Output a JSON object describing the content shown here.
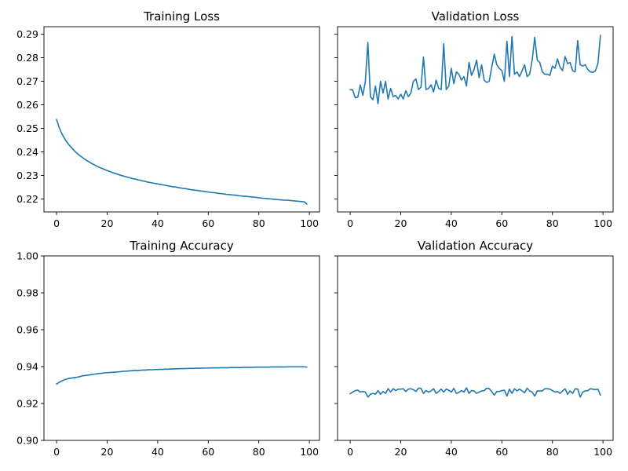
{
  "chart_data": [
    {
      "type": "line",
      "title": "Training Loss",
      "xlabel": "",
      "ylabel": "",
      "xlim": [
        -5,
        104
      ],
      "ylim": [
        0.2145,
        0.2932
      ],
      "xticks": [
        0,
        20,
        40,
        60,
        80,
        100
      ],
      "xtick_labels": [
        "0",
        "20",
        "40",
        "60",
        "80",
        "100"
      ],
      "yticks": [
        0.22,
        0.23,
        0.24,
        0.25,
        0.26,
        0.27,
        0.28,
        0.29
      ],
      "ytick_labels": [
        "0.22",
        "0.23",
        "0.24",
        "0.25",
        "0.26",
        "0.27",
        "0.28",
        "0.29"
      ],
      "show_ytick_labels": true,
      "grid": false,
      "color": "#1f77b4",
      "x": [
        0,
        1,
        2,
        3,
        4,
        5,
        6,
        7,
        8,
        9,
        10,
        11,
        12,
        13,
        14,
        15,
        16,
        17,
        18,
        19,
        20,
        21,
        22,
        23,
        24,
        25,
        26,
        27,
        28,
        29,
        30,
        31,
        32,
        33,
        34,
        35,
        36,
        37,
        38,
        39,
        40,
        41,
        42,
        43,
        44,
        45,
        46,
        47,
        48,
        49,
        50,
        51,
        52,
        53,
        54,
        55,
        56,
        57,
        58,
        59,
        60,
        61,
        62,
        63,
        64,
        65,
        66,
        67,
        68,
        69,
        70,
        71,
        72,
        73,
        74,
        75,
        76,
        77,
        78,
        79,
        80,
        81,
        82,
        83,
        84,
        85,
        86,
        87,
        88,
        89,
        90,
        91,
        92,
        93,
        94,
        95,
        96,
        97,
        98,
        99
      ],
      "y": [
        0.2538,
        0.2504,
        0.2479,
        0.246,
        0.2443,
        0.2429,
        0.2417,
        0.2405,
        0.2395,
        0.2386,
        0.2378,
        0.237,
        0.2363,
        0.2357,
        0.235,
        0.2345,
        0.2339,
        0.2334,
        0.233,
        0.2325,
        0.2321,
        0.2317,
        0.2313,
        0.2309,
        0.2306,
        0.2302,
        0.2299,
        0.2296,
        0.2293,
        0.229,
        0.2287,
        0.2285,
        0.2282,
        0.228,
        0.2277,
        0.2275,
        0.2272,
        0.227,
        0.2268,
        0.2266,
        0.2264,
        0.2262,
        0.226,
        0.2258,
        0.2256,
        0.2254,
        0.2252,
        0.2251,
        0.2249,
        0.2247,
        0.2245,
        0.2244,
        0.2242,
        0.224,
        0.2239,
        0.2237,
        0.2236,
        0.2234,
        0.2233,
        0.2231,
        0.223,
        0.2228,
        0.2227,
        0.2226,
        0.2224,
        0.2223,
        0.2222,
        0.222,
        0.2219,
        0.2218,
        0.2217,
        0.2216,
        0.2214,
        0.2213,
        0.2212,
        0.2211,
        0.221,
        0.2209,
        0.2208,
        0.2207,
        0.2205,
        0.2204,
        0.2203,
        0.2202,
        0.2201,
        0.22,
        0.2199,
        0.2198,
        0.2197,
        0.2196,
        0.2195,
        0.2195,
        0.2194,
        0.2193,
        0.2192,
        0.2191,
        0.219,
        0.2189,
        0.2188,
        0.2178
      ]
    },
    {
      "type": "line",
      "title": "Validation Loss",
      "xlabel": "",
      "ylabel": "",
      "xlim": [
        -5,
        104
      ],
      "ylim": [
        0.2145,
        0.2932
      ],
      "xticks": [
        0,
        20,
        40,
        60,
        80,
        100
      ],
      "xtick_labels": [
        "0",
        "20",
        "40",
        "60",
        "80",
        "100"
      ],
      "yticks": [
        0.22,
        0.23,
        0.24,
        0.25,
        0.26,
        0.27,
        0.28,
        0.29
      ],
      "ytick_labels": [
        "0.22",
        "0.23",
        "0.24",
        "0.25",
        "0.26",
        "0.27",
        "0.28",
        "0.29"
      ],
      "show_ytick_labels": false,
      "grid": false,
      "color": "#1f77b4",
      "x": [
        0,
        1,
        2,
        3,
        4,
        5,
        6,
        7,
        8,
        9,
        10,
        11,
        12,
        13,
        14,
        15,
        16,
        17,
        18,
        19,
        20,
        21,
        22,
        23,
        24,
        25,
        26,
        27,
        28,
        29,
        30,
        31,
        32,
        33,
        34,
        35,
        36,
        37,
        38,
        39,
        40,
        41,
        42,
        43,
        44,
        45,
        46,
        47,
        48,
        49,
        50,
        51,
        52,
        53,
        54,
        55,
        56,
        57,
        58,
        59,
        60,
        61,
        62,
        63,
        64,
        65,
        66,
        67,
        68,
        69,
        70,
        71,
        72,
        73,
        74,
        75,
        76,
        77,
        78,
        79,
        80,
        81,
        82,
        83,
        84,
        85,
        86,
        87,
        88,
        89,
        90,
        91,
        92,
        93,
        94,
        95,
        96,
        97,
        98,
        99
      ],
      "y": [
        0.2665,
        0.2663,
        0.263,
        0.2632,
        0.2685,
        0.264,
        0.27,
        0.2865,
        0.2635,
        0.2622,
        0.268,
        0.2605,
        0.27,
        0.265,
        0.27,
        0.2625,
        0.267,
        0.2635,
        0.264,
        0.2625,
        0.2645,
        0.2625,
        0.266,
        0.2635,
        0.265,
        0.27,
        0.271,
        0.2665,
        0.2675,
        0.2803,
        0.2665,
        0.267,
        0.2685,
        0.2655,
        0.2705,
        0.267,
        0.2665,
        0.286,
        0.2665,
        0.268,
        0.2755,
        0.269,
        0.274,
        0.273,
        0.2705,
        0.272,
        0.268,
        0.278,
        0.2725,
        0.275,
        0.279,
        0.2715,
        0.277,
        0.2705,
        0.2695,
        0.27,
        0.276,
        0.2815,
        0.277,
        0.2755,
        0.2745,
        0.27,
        0.287,
        0.272,
        0.289,
        0.273,
        0.274,
        0.272,
        0.2745,
        0.277,
        0.272,
        0.273,
        0.279,
        0.2887,
        0.279,
        0.278,
        0.274,
        0.273,
        0.273,
        0.2725,
        0.2765,
        0.2755,
        0.2795,
        0.276,
        0.2745,
        0.2805,
        0.2775,
        0.278,
        0.2745,
        0.274,
        0.2873,
        0.277,
        0.2765,
        0.277,
        0.275,
        0.274,
        0.2738,
        0.2745,
        0.2775,
        0.2895
      ]
    },
    {
      "type": "line",
      "title": "Training Accuracy",
      "xlabel": "",
      "ylabel": "",
      "xlim": [
        -5,
        104
      ],
      "ylim": [
        0.9,
        1.0
      ],
      "xticks": [
        0,
        20,
        40,
        60,
        80,
        100
      ],
      "xtick_labels": [
        "0",
        "20",
        "40",
        "60",
        "80",
        "100"
      ],
      "yticks": [
        0.9,
        0.92,
        0.94,
        0.96,
        0.98,
        1.0
      ],
      "ytick_labels": [
        "0.90",
        "0.92",
        "0.94",
        "0.96",
        "0.98",
        "1.00"
      ],
      "show_ytick_labels": true,
      "grid": false,
      "color": "#1f77b4",
      "x": [
        0,
        1,
        2,
        3,
        4,
        5,
        6,
        7,
        8,
        9,
        10,
        11,
        12,
        13,
        14,
        15,
        16,
        17,
        18,
        19,
        20,
        21,
        22,
        23,
        24,
        25,
        26,
        27,
        28,
        29,
        30,
        31,
        32,
        33,
        34,
        35,
        36,
        37,
        38,
        39,
        40,
        41,
        42,
        43,
        44,
        45,
        46,
        47,
        48,
        49,
        50,
        51,
        52,
        53,
        54,
        55,
        56,
        57,
        58,
        59,
        60,
        61,
        62,
        63,
        64,
        65,
        66,
        67,
        68,
        69,
        70,
        71,
        72,
        73,
        74,
        75,
        76,
        77,
        78,
        79,
        80,
        81,
        82,
        83,
        84,
        85,
        86,
        87,
        88,
        89,
        90,
        91,
        92,
        93,
        94,
        95,
        96,
        97,
        98,
        99
      ],
      "y": [
        0.9305,
        0.9315,
        0.9322,
        0.9328,
        0.9333,
        0.9336,
        0.9338,
        0.934,
        0.9342,
        0.9345,
        0.9349,
        0.9351,
        0.9353,
        0.9355,
        0.9357,
        0.9359,
        0.9361,
        0.9363,
        0.9364,
        0.9366,
        0.9367,
        0.9368,
        0.9369,
        0.937,
        0.9371,
        0.9372,
        0.9374,
        0.9375,
        0.9376,
        0.9377,
        0.9378,
        0.9379,
        0.9379,
        0.938,
        0.9381,
        0.9381,
        0.9382,
        0.9383,
        0.9383,
        0.9384,
        0.9384,
        0.9385,
        0.9385,
        0.9386,
        0.9386,
        0.9387,
        0.9387,
        0.9388,
        0.9388,
        0.9389,
        0.9389,
        0.9389,
        0.939,
        0.939,
        0.939,
        0.9391,
        0.9391,
        0.9391,
        0.9392,
        0.9392,
        0.9392,
        0.9393,
        0.9393,
        0.9393,
        0.9393,
        0.9394,
        0.9394,
        0.9394,
        0.9394,
        0.9395,
        0.9395,
        0.9395,
        0.9395,
        0.9395,
        0.9396,
        0.9396,
        0.9396,
        0.9396,
        0.9396,
        0.9397,
        0.9397,
        0.9397,
        0.9397,
        0.9397,
        0.9397,
        0.9398,
        0.9398,
        0.9398,
        0.9398,
        0.9398,
        0.9398,
        0.9398,
        0.9399,
        0.9399,
        0.9399,
        0.9399,
        0.9399,
        0.9399,
        0.9399,
        0.9397
      ]
    },
    {
      "type": "line",
      "title": "Validation Accuracy",
      "xlabel": "",
      "ylabel": "",
      "xlim": [
        -5,
        104
      ],
      "ylim": [
        0.9,
        1.0
      ],
      "xticks": [
        0,
        20,
        40,
        60,
        80,
        100
      ],
      "xtick_labels": [
        "0",
        "20",
        "40",
        "60",
        "80",
        "100"
      ],
      "yticks": [
        0.9,
        0.92,
        0.94,
        0.96,
        0.98,
        1.0
      ],
      "ytick_labels": [
        "0.90",
        "0.92",
        "0.94",
        "0.96",
        "0.98",
        "1.00"
      ],
      "show_ytick_labels": false,
      "grid": false,
      "color": "#1f77b4",
      "x": [
        0,
        1,
        2,
        3,
        4,
        5,
        6,
        7,
        8,
        9,
        10,
        11,
        12,
        13,
        14,
        15,
        16,
        17,
        18,
        19,
        20,
        21,
        22,
        23,
        24,
        25,
        26,
        27,
        28,
        29,
        30,
        31,
        32,
        33,
        34,
        35,
        36,
        37,
        38,
        39,
        40,
        41,
        42,
        43,
        44,
        45,
        46,
        47,
        48,
        49,
        50,
        51,
        52,
        53,
        54,
        55,
        56,
        57,
        58,
        59,
        60,
        61,
        62,
        63,
        64,
        65,
        66,
        67,
        68,
        69,
        70,
        71,
        72,
        73,
        74,
        75,
        76,
        77,
        78,
        79,
        80,
        81,
        82,
        83,
        84,
        85,
        86,
        87,
        88,
        89,
        90,
        91,
        92,
        93,
        94,
        95,
        96,
        97,
        98,
        99
      ],
      "y": [
        0.9253,
        0.9262,
        0.927,
        0.9272,
        0.9262,
        0.9265,
        0.9262,
        0.9235,
        0.925,
        0.9255,
        0.925,
        0.927,
        0.925,
        0.9265,
        0.9255,
        0.928,
        0.9262,
        0.928,
        0.927,
        0.9278,
        0.9278,
        0.928,
        0.9265,
        0.9278,
        0.928,
        0.9275,
        0.9265,
        0.9283,
        0.9282,
        0.9255,
        0.927,
        0.9262,
        0.9268,
        0.928,
        0.9255,
        0.9265,
        0.9278,
        0.9262,
        0.9278,
        0.9272,
        0.9262,
        0.9282,
        0.9255,
        0.926,
        0.927,
        0.9262,
        0.9285,
        0.9255,
        0.927,
        0.9268,
        0.9255,
        0.9262,
        0.9268,
        0.927,
        0.9283,
        0.928,
        0.9265,
        0.9245,
        0.9265,
        0.9265,
        0.927,
        0.9272,
        0.924,
        0.9278,
        0.9255,
        0.928,
        0.9268,
        0.9278,
        0.9268,
        0.9258,
        0.9283,
        0.9268,
        0.9262,
        0.924,
        0.9268,
        0.9268,
        0.9268,
        0.928,
        0.928,
        0.9278,
        0.927,
        0.9262,
        0.9265,
        0.9255,
        0.9268,
        0.928,
        0.925,
        0.9268,
        0.9255,
        0.928,
        0.9278,
        0.9235,
        0.9262,
        0.9268,
        0.927,
        0.928,
        0.9278,
        0.9275,
        0.9278,
        0.9245
      ]
    }
  ]
}
